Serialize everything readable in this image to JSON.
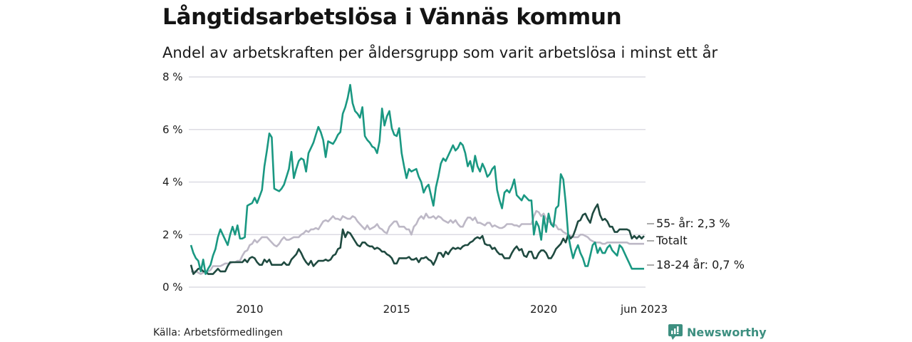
{
  "header": {
    "title": "Långtidsarbetslösa i Vännäs kommun",
    "subtitle": "Andel av arbetskraften per åldersgrupp som varit arbetslösa i minst ett år"
  },
  "footer": {
    "source": "Källa: Arbetsförmedlingen",
    "brand": "Newsworthy",
    "brand_color": "#3d8f80"
  },
  "chart_data": {
    "type": "line",
    "title": "Långtidsarbetslösa i Vännäs kommun",
    "subtitle": "Andel av arbetskraften per åldersgrupp som varit arbetslösa i minst ett år",
    "xlabel": "",
    "ylabel": "",
    "x_start": "2008-01",
    "x_end": "2023-06",
    "x_unit": "month",
    "ylim": [
      0,
      8
    ],
    "yticks": [
      0,
      2,
      4,
      6,
      8
    ],
    "ytick_labels": [
      "0 %",
      "2 %",
      "4 %",
      "6 %",
      "8 %"
    ],
    "xticks": [
      {
        "month_index": 24,
        "label": "2010"
      },
      {
        "month_index": 84,
        "label": "2015"
      },
      {
        "month_index": 144,
        "label": "2020"
      },
      {
        "month_index": 185,
        "label": "jun 2023"
      }
    ],
    "grid": true,
    "legend": "end-labels-right",
    "series": [
      {
        "name": "18-24 år",
        "end_label": "18-24 år: 0,7 %",
        "color": "#1a9882",
        "values": [
          1.6,
          1.3,
          1.1,
          1.0,
          0.6,
          1.05,
          0.5,
          0.7,
          0.85,
          1.2,
          1.45,
          1.9,
          2.2,
          2.0,
          1.8,
          1.6,
          2.0,
          2.3,
          2.0,
          2.35,
          1.85,
          1.85,
          1.9,
          3.1,
          3.15,
          3.2,
          3.4,
          3.2,
          3.45,
          3.7,
          4.6,
          5.2,
          5.85,
          5.7,
          3.75,
          3.7,
          3.65,
          3.75,
          3.9,
          4.2,
          4.5,
          5.15,
          4.15,
          4.5,
          4.8,
          4.9,
          4.85,
          4.4,
          5.1,
          5.3,
          5.5,
          5.8,
          6.1,
          5.9,
          5.6,
          4.95,
          5.55,
          5.5,
          5.45,
          5.6,
          5.8,
          5.9,
          6.6,
          6.85,
          7.2,
          7.7,
          7.0,
          6.7,
          6.6,
          6.45,
          6.85,
          5.75,
          5.6,
          5.5,
          5.35,
          5.3,
          5.1,
          5.55,
          6.8,
          6.15,
          6.5,
          6.7,
          6.05,
          5.8,
          5.75,
          6.05,
          5.1,
          4.6,
          4.15,
          4.5,
          4.4,
          4.45,
          4.5,
          4.2,
          4.0,
          3.6,
          3.8,
          3.9,
          3.5,
          3.1,
          3.8,
          4.2,
          4.7,
          4.9,
          4.8,
          5.0,
          5.2,
          5.4,
          5.2,
          5.3,
          5.5,
          5.4,
          5.1,
          4.6,
          4.8,
          4.4,
          5.0,
          4.6,
          4.4,
          4.7,
          4.5,
          4.2,
          4.3,
          4.5,
          4.6,
          3.7,
          3.3,
          3.0,
          3.6,
          3.7,
          3.6,
          3.8,
          4.1,
          3.5,
          3.4,
          3.3,
          3.5,
          3.4,
          3.3,
          3.3,
          2.0,
          2.5,
          2.3,
          1.8,
          2.7,
          2.1,
          2.8,
          2.4,
          2.3,
          3.0,
          3.1,
          4.3,
          4.1,
          3.2,
          2.0,
          1.5,
          1.1,
          1.4,
          1.6,
          1.3,
          1.1,
          0.8,
          0.8,
          1.2,
          1.6,
          1.7,
          1.3,
          1.5,
          1.3,
          1.3,
          1.5,
          1.6,
          1.4,
          1.3,
          1.2,
          1.6,
          1.5,
          1.3,
          1.1,
          0.9,
          0.7,
          0.7,
          0.7,
          0.7,
          0.7,
          0.7,
          0.7,
          0.7,
          0.7,
          0.7,
          0.7
        ]
      },
      {
        "name": "55- år",
        "end_label": "55- år: 2,3 %",
        "color": "#1f4a40",
        "values": [
          0.85,
          0.5,
          0.6,
          0.7,
          0.7,
          0.6,
          0.6,
          0.5,
          0.5,
          0.5,
          0.6,
          0.7,
          0.6,
          0.6,
          0.6,
          0.8,
          0.95,
          0.95,
          0.95,
          0.95,
          0.95,
          0.95,
          1.05,
          0.95,
          1.1,
          1.15,
          1.1,
          0.95,
          0.85,
          0.85,
          1.05,
          0.95,
          1.05,
          0.85,
          0.85,
          0.85,
          0.85,
          0.85,
          0.95,
          0.85,
          0.85,
          1.05,
          1.15,
          1.25,
          1.45,
          1.3,
          1.1,
          0.95,
          0.85,
          1.0,
          0.8,
          0.9,
          1.0,
          1.0,
          1.0,
          1.05,
          1.0,
          1.05,
          1.2,
          1.25,
          1.45,
          1.5,
          2.2,
          1.9,
          2.1,
          2.05,
          1.9,
          1.75,
          1.6,
          1.55,
          1.7,
          1.7,
          1.6,
          1.55,
          1.55,
          1.45,
          1.5,
          1.45,
          1.35,
          1.35,
          1.25,
          1.2,
          1.1,
          0.9,
          0.9,
          1.1,
          1.1,
          1.1,
          1.1,
          1.15,
          1.05,
          1.05,
          1.1,
          0.95,
          1.1,
          1.1,
          1.15,
          1.05,
          1.0,
          0.85,
          1.05,
          1.3,
          1.3,
          1.15,
          1.35,
          1.25,
          1.4,
          1.5,
          1.45,
          1.5,
          1.45,
          1.55,
          1.6,
          1.6,
          1.7,
          1.75,
          1.85,
          1.9,
          1.85,
          1.95,
          1.65,
          1.6,
          1.6,
          1.45,
          1.5,
          1.35,
          1.25,
          1.25,
          1.1,
          1.1,
          1.1,
          1.3,
          1.45,
          1.55,
          1.4,
          1.45,
          1.2,
          1.15,
          1.35,
          1.35,
          1.1,
          1.1,
          1.3,
          1.4,
          1.4,
          1.3,
          1.1,
          1.1,
          1.25,
          1.45,
          1.55,
          1.65,
          1.85,
          1.7,
          2.0,
          1.85,
          1.95,
          2.2,
          2.5,
          2.55,
          2.75,
          2.8,
          2.6,
          2.45,
          2.8,
          3.0,
          3.15,
          2.75,
          2.55,
          2.6,
          2.5,
          2.3,
          2.3,
          2.1,
          2.1,
          2.2,
          2.2,
          2.2,
          2.2,
          2.15,
          1.85,
          1.95,
          1.85,
          1.95,
          1.85,
          1.95,
          2.3,
          2.3,
          2.3,
          2.3,
          2.3,
          2.3,
          2.3,
          2.3,
          2.3,
          2.3,
          2.3,
          2.3,
          2.3
        ]
      },
      {
        "name": "Totalt",
        "end_label": "Totalt",
        "color": "#bdb8c6",
        "values": [
          0.6,
          0.6,
          0.6,
          0.55,
          0.5,
          0.55,
          0.55,
          0.6,
          0.65,
          0.8,
          0.8,
          0.8,
          0.8,
          0.85,
          0.9,
          0.9,
          0.9,
          0.95,
          0.95,
          1.0,
          1.0,
          1.2,
          1.35,
          1.4,
          1.6,
          1.65,
          1.8,
          1.7,
          1.8,
          1.9,
          1.9,
          1.9,
          1.8,
          1.7,
          1.6,
          1.55,
          1.65,
          1.8,
          1.9,
          1.8,
          1.8,
          1.85,
          1.9,
          1.9,
          1.9,
          2.0,
          2.05,
          2.15,
          2.1,
          2.2,
          2.2,
          2.25,
          2.2,
          2.35,
          2.5,
          2.55,
          2.5,
          2.6,
          2.7,
          2.6,
          2.6,
          2.55,
          2.7,
          2.65,
          2.6,
          2.6,
          2.7,
          2.65,
          2.5,
          2.4,
          2.3,
          2.2,
          2.35,
          2.2,
          2.25,
          2.3,
          2.4,
          2.25,
          2.2,
          2.1,
          2.05,
          2.3,
          2.4,
          2.5,
          2.5,
          2.3,
          2.3,
          2.3,
          2.2,
          2.2,
          2.0,
          2.3,
          2.4,
          2.6,
          2.7,
          2.6,
          2.8,
          2.65,
          2.65,
          2.7,
          2.6,
          2.7,
          2.65,
          2.55,
          2.5,
          2.45,
          2.55,
          2.45,
          2.55,
          2.4,
          2.3,
          2.3,
          2.5,
          2.65,
          2.65,
          2.55,
          2.65,
          2.45,
          2.45,
          2.4,
          2.35,
          2.45,
          2.45,
          2.3,
          2.35,
          2.3,
          2.25,
          2.25,
          2.3,
          2.4,
          2.4,
          2.4,
          2.35,
          2.35,
          2.3,
          2.4,
          2.4,
          2.4,
          2.4,
          2.4,
          2.7,
          2.9,
          2.85,
          2.7,
          2.8,
          2.6,
          2.5,
          2.45,
          2.4,
          2.35,
          2.2,
          2.2,
          2.1,
          2.05,
          2.0,
          1.95,
          1.9,
          1.9,
          1.9,
          2.0,
          2.0,
          1.95,
          1.9,
          1.8,
          1.75,
          1.7,
          1.7,
          1.7,
          1.65,
          1.65,
          1.7,
          1.7,
          1.7,
          1.7,
          1.7,
          1.7,
          1.7,
          1.7,
          1.7,
          1.65,
          1.65,
          1.65,
          1.65,
          1.65,
          1.65,
          1.65,
          1.65
        ]
      }
    ]
  }
}
